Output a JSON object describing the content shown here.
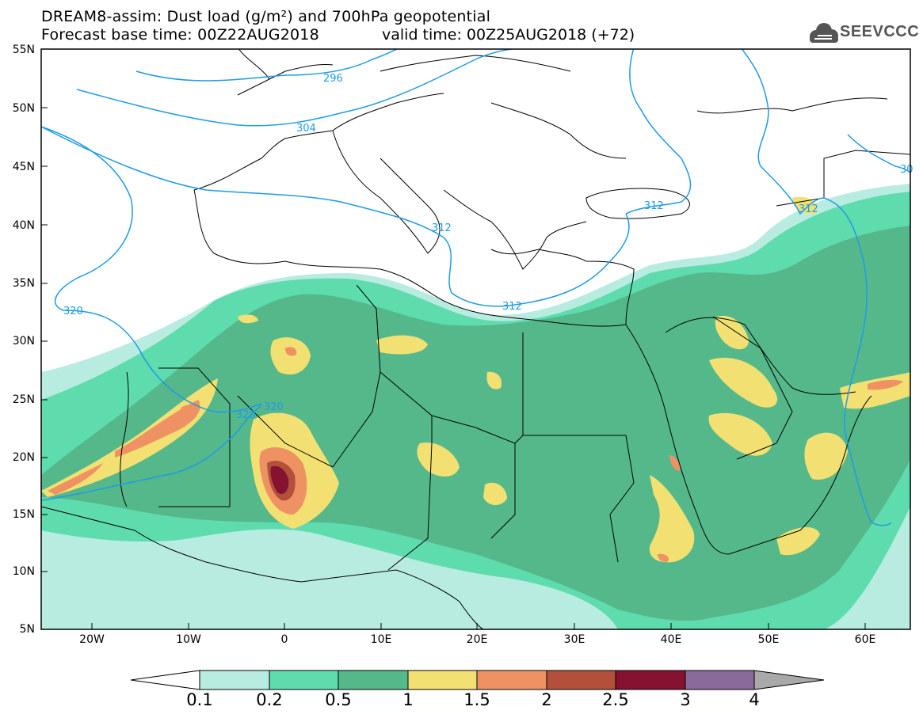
{
  "title": {
    "line1": "DREAM8-assim: Dust load (g/m²) and 700hPa geopotential",
    "line2": "Forecast base time: 00Z22AUG2018",
    "valid": "valid time: 00Z25AUG2018 (+72)"
  },
  "logo": {
    "text": "SEEVCCC",
    "icon": "cloud-icon"
  },
  "map": {
    "projection": "lat-lon",
    "lon_range": [
      -25,
      65
    ],
    "lat_range": [
      5,
      55
    ],
    "lat_ticks": [
      "55N",
      "50N",
      "45N",
      "40N",
      "35N",
      "30N",
      "25N",
      "20N",
      "15N",
      "10N",
      "5N"
    ],
    "lon_ticks": [
      "20W",
      "10W",
      "0",
      "10E",
      "20E",
      "30E",
      "40E",
      "50E",
      "60E"
    ],
    "contour_color": "#1e9be6",
    "contour_labels": [
      "296",
      "304",
      "312",
      "312",
      "312",
      "320",
      "320",
      "320",
      "312",
      "30"
    ]
  },
  "colorbar": {
    "levels": [
      "0.1",
      "0.2",
      "0.5",
      "1",
      "1.5",
      "2",
      "2.5",
      "3",
      "4"
    ],
    "colors": [
      "#ffffff",
      "#b9ece1",
      "#5fdcae",
      "#55b88b",
      "#f2e172",
      "#ef9263",
      "#b2503c",
      "#85132f",
      "#8a6a9b",
      "#a9a9a9"
    ]
  }
}
